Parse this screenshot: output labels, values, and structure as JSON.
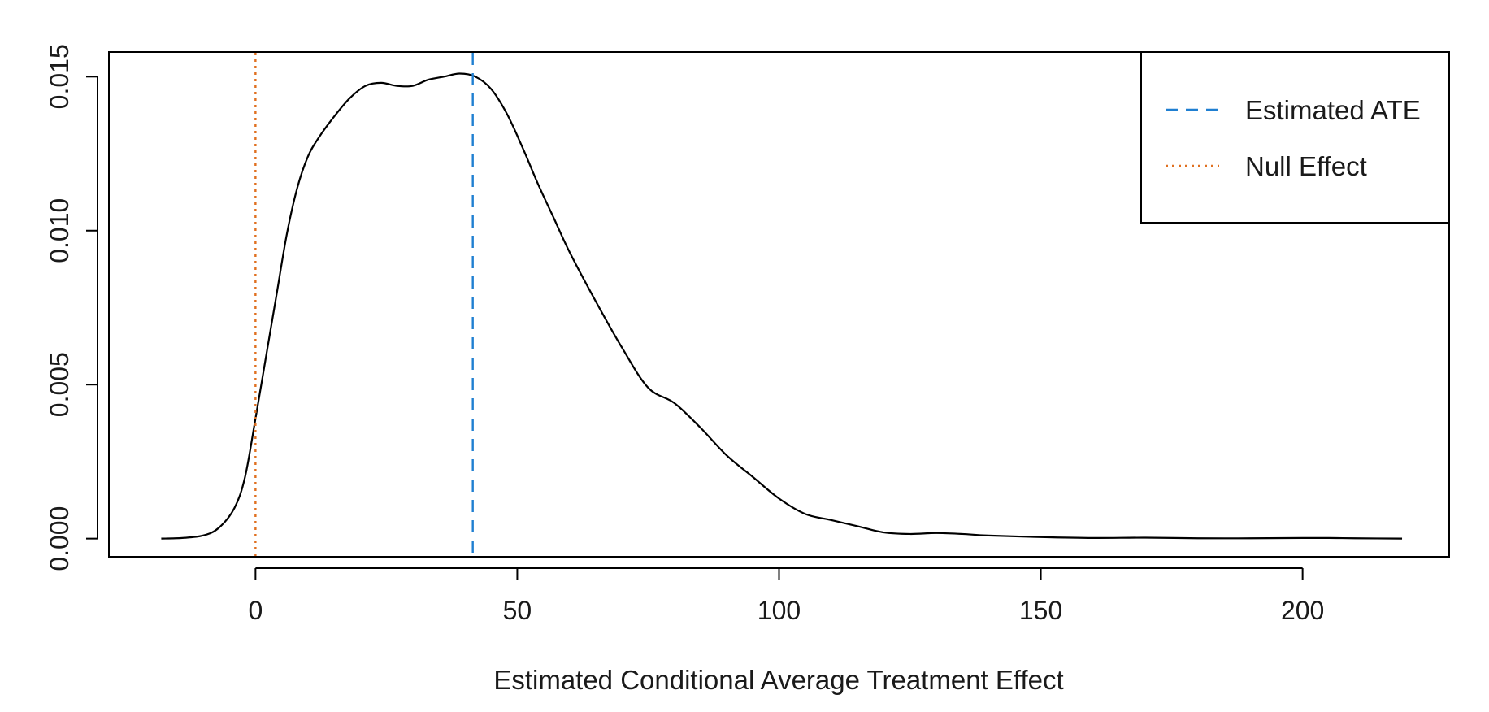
{
  "chart_data": {
    "type": "line",
    "title": "",
    "xlabel": "Estimated Conditional Average Treatment Effect",
    "ylabel": "",
    "xlim": [
      -28,
      228
    ],
    "ylim": [
      -0.00059,
      0.0158
    ],
    "x_ticks": [
      {
        "value": 0,
        "label": "0"
      },
      {
        "value": 50,
        "label": "50"
      },
      {
        "value": 100,
        "label": "100"
      },
      {
        "value": 150,
        "label": "150"
      },
      {
        "value": 200,
        "label": "200"
      }
    ],
    "y_ticks": [
      {
        "value": 0.0,
        "label": "0.000"
      },
      {
        "value": 0.005,
        "label": "0.005"
      },
      {
        "value": 0.01,
        "label": "0.010"
      },
      {
        "value": 0.015,
        "label": "0.015"
      }
    ],
    "density": {
      "x": [
        -18,
        -14,
        -10,
        -7,
        -4,
        -2,
        0,
        2,
        4,
        6,
        8,
        10,
        12,
        15,
        18,
        21,
        24,
        27,
        30,
        33,
        36,
        39,
        42,
        45,
        48,
        51,
        54,
        57,
        60,
        65,
        70,
        75,
        80,
        85,
        90,
        95,
        100,
        105,
        110,
        115,
        120,
        125,
        130,
        135,
        140,
        150,
        160,
        170,
        180,
        190,
        200,
        205,
        210,
        219
      ],
      "y": [
        0.0,
        2e-05,
        0.0001,
        0.00035,
        0.001,
        0.002,
        0.0039,
        0.0059,
        0.0079,
        0.0099,
        0.0114,
        0.0124,
        0.013,
        0.0137,
        0.0143,
        0.0147,
        0.0148,
        0.0147,
        0.0147,
        0.0149,
        0.015,
        0.0151,
        0.015,
        0.0146,
        0.0138,
        0.0127,
        0.0115,
        0.0104,
        0.0093,
        0.0077,
        0.0062,
        0.0049,
        0.0044,
        0.0036,
        0.0027,
        0.002,
        0.0013,
        0.0008,
        0.0006,
        0.0004,
        0.0002,
        0.00015,
        0.00018,
        0.00015,
        0.0001,
        5e-05,
        2e-05,
        3e-05,
        1e-05,
        1e-05,
        2e-05,
        2e-05,
        1e-05,
        0.0
      ],
      "color": "#000000"
    },
    "reference_lines": [
      {
        "name": "Estimated ATE",
        "x": 41.5,
        "color": "#1f7fd1",
        "style": "dashed"
      },
      {
        "name": "Null Effect",
        "x": 0,
        "color": "#e07020",
        "style": "dotted"
      }
    ],
    "legend": {
      "position": "top-right",
      "entries": [
        {
          "label": "Estimated ATE",
          "color": "#1f7fd1",
          "style": "dashed"
        },
        {
          "label": "Null Effect",
          "color": "#e07020",
          "style": "dotted"
        }
      ]
    },
    "grid": false
  }
}
